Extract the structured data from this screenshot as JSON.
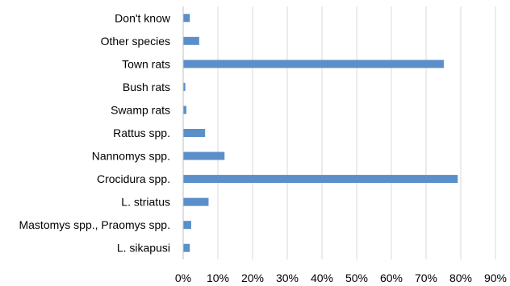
{
  "chart_data": {
    "type": "bar",
    "orientation": "horizontal",
    "categories": [
      "Don't know",
      "Other species",
      "Town rats",
      "Bush rats",
      "Swamp rats",
      "Rattus spp.",
      "Nannomys spp.",
      "Crocidura spp.",
      "L. striatus",
      "Mastomys spp., Praomys spp.",
      "L. sikapusi"
    ],
    "values": [
      1.8,
      4.5,
      75,
      0.5,
      0.8,
      6.2,
      11.8,
      79,
      7.2,
      2.2,
      1.8
    ],
    "unit": "%",
    "title": "",
    "xlabel": "",
    "ylabel": "",
    "xlim": [
      0,
      90
    ],
    "xticks": [
      0,
      10,
      20,
      30,
      40,
      50,
      60,
      70,
      80,
      90
    ],
    "xtick_labels": [
      "0%",
      "10%",
      "20%",
      "30%",
      "40%",
      "50%",
      "60%",
      "70%",
      "80%",
      "90%"
    ],
    "grid": "vertical",
    "legend": "none",
    "bar_color": "#5b8fc9"
  }
}
